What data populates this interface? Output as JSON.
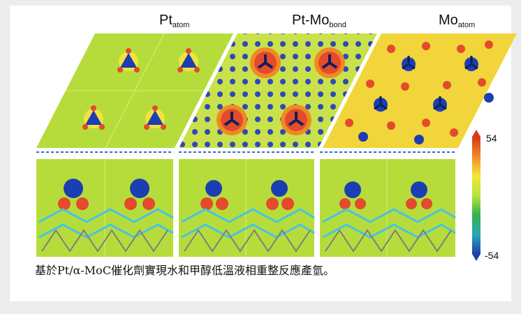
{
  "figure": {
    "panel_headers": [
      {
        "main": "Pt",
        "sub": "atom"
      },
      {
        "main": "Pt-Mo",
        "sub": "bond"
      },
      {
        "main": "Mo",
        "sub": "atom"
      }
    ],
    "colorbar": {
      "max_label": "54",
      "min_label": "-54",
      "colors": [
        "#d63a1c",
        "#f08a24",
        "#f5e63a",
        "#b9e33f",
        "#34b24a",
        "#2aa7b8",
        "#1f3fae"
      ]
    },
    "colors": {
      "background_green": "#b6dc3c",
      "red": "#e44a2c",
      "blue": "#1b3fb2",
      "cyan": "#48c4de"
    }
  },
  "caption": "基於Pt/α-MoC催化劑實現水和甲醇低溫液相重整反應產氫。"
}
